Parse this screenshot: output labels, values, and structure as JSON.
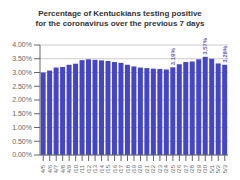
{
  "chart_data": {
    "type": "bar",
    "title": "Percentage of Kentuckians testing positive\nfor the coronavirus over the previous 7 days",
    "categories": [
      "4/5",
      "4/6",
      "4/7",
      "4/8",
      "4/9",
      "4/10",
      "4/11",
      "4/12",
      "4/13",
      "4/14",
      "4/15",
      "4/16",
      "4/17",
      "4/18",
      "4/19",
      "4/20",
      "4/21",
      "4/22",
      "4/23",
      "4/24",
      "4/25",
      "4/26",
      "4/27",
      "4/28",
      "4/29",
      "4/30",
      "5/1",
      "5/2",
      "5/3"
    ],
    "values": [
      3.0,
      3.07,
      3.18,
      3.2,
      3.28,
      3.32,
      3.45,
      3.48,
      3.46,
      3.44,
      3.42,
      3.38,
      3.35,
      3.28,
      3.22,
      3.18,
      3.16,
      3.14,
      3.13,
      3.11,
      3.19,
      3.3,
      3.38,
      3.4,
      3.48,
      3.57,
      3.5,
      3.33,
      3.28
    ],
    "color": "#4444cc",
    "ylim": [
      0.0,
      4.0
    ],
    "yticks": [
      {
        "value": 0.0,
        "label": "0.00%"
      },
      {
        "value": 0.5,
        "label": "0.50%"
      },
      {
        "value": 1.0,
        "label": "1.00%"
      },
      {
        "value": 1.5,
        "label": "1.50%"
      },
      {
        "value": 2.0,
        "label": "2.00%"
      },
      {
        "value": 2.5,
        "label": "2.50%"
      },
      {
        "value": 3.0,
        "label": "3.00%"
      },
      {
        "value": 3.5,
        "label": "3.50%"
      },
      {
        "value": 4.0,
        "label": "4.00%"
      }
    ],
    "grid": true,
    "annotations": [
      {
        "category": "4/25",
        "value": 3.19,
        "label": "3.19%"
      },
      {
        "category": "4/30",
        "value": 3.57,
        "label": "3.57%"
      },
      {
        "category": "5/3",
        "value": 3.28,
        "label": "3.28%"
      }
    ]
  }
}
